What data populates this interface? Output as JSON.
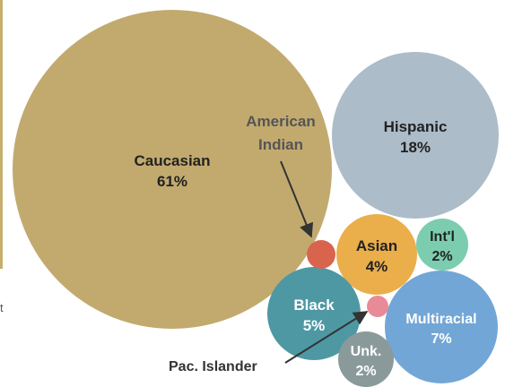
{
  "chart_data": {
    "type": "bubble",
    "title": "",
    "series": [
      {
        "label": "Caucasian",
        "value_label": "61%",
        "value": 61,
        "color": "#c2aa6f",
        "text_color": "#222222"
      },
      {
        "label": "Hispanic",
        "value_label": "18%",
        "value": 18,
        "color": "#acbcc8",
        "text_color": "#222222"
      },
      {
        "label": "Asian",
        "value_label": "4%",
        "value": 4,
        "color": "#eaae4a",
        "text_color": "#222222"
      },
      {
        "label": "Int'l",
        "value_label": "2%",
        "value": 2,
        "color": "#7ccdb0",
        "text_color": "#222222"
      },
      {
        "label": "Black",
        "value_label": "5%",
        "value": 5,
        "color": "#4e98a4",
        "text_color": "#ffffff"
      },
      {
        "label": "Multiracial",
        "value_label": "7%",
        "value": 7,
        "color": "#72a6d6",
        "text_color": "#ffffff"
      },
      {
        "label": "Unk.",
        "value_label": "2%",
        "value": 2,
        "color": "#8a9a9a",
        "text_color": "#ffffff"
      },
      {
        "label": "American Indian",
        "value_label": "",
        "value": 0.5,
        "color": "#d9644e",
        "text_color": "#555555"
      },
      {
        "label": "Pac. Islander",
        "value_label": "",
        "value": 0.3,
        "color": "#e98a98",
        "text_color": "#333333"
      }
    ],
    "callouts": [
      {
        "label": "American Indian",
        "lines": [
          "American",
          "Indian"
        ]
      },
      {
        "label": "Pac. Islander",
        "lines": [
          "Pac. Islander"
        ]
      }
    ]
  },
  "fragments": {
    "left_edge_text": "t"
  }
}
